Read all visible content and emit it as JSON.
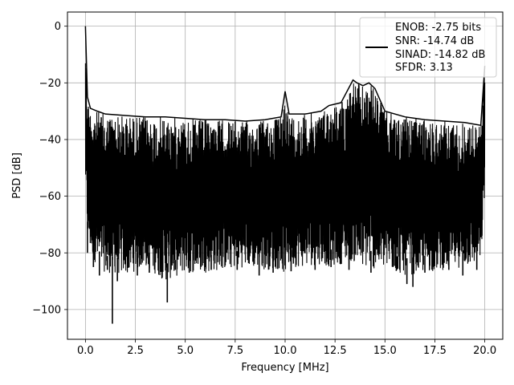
{
  "chart_data": {
    "type": "line",
    "title": "",
    "xlabel": "Frequency [MHz]",
    "ylabel": "PSD [dB]",
    "xlim": [
      -0.9,
      20.9
    ],
    "ylim": [
      -110.5,
      5
    ],
    "xticks": [
      0.0,
      2.5,
      5.0,
      7.5,
      10.0,
      12.5,
      15.0,
      17.5,
      20.0
    ],
    "xtick_labels": [
      "0.0",
      "2.5",
      "5.0",
      "7.5",
      "10.0",
      "12.5",
      "15.0",
      "17.5",
      "20.0"
    ],
    "yticks": [
      0,
      -20,
      -40,
      -60,
      -80,
      -100
    ],
    "ytick_labels": [
      "0",
      "−20",
      "−40",
      "−60",
      "−80",
      "−100"
    ],
    "grid": true,
    "legend_position": "top-right",
    "legend_lines": [
      "ENOB: -2.75 bits",
      "SNR: -14.74 dB",
      "SINAD: -14.82 dB",
      "SFDR: 3.13"
    ],
    "series_color": "#000000",
    "envelope": {
      "x": [
        0.0,
        0.1,
        0.25,
        0.6,
        1.0,
        2.0,
        3.0,
        4.0,
        5.0,
        6.0,
        7.0,
        8.0,
        9.0,
        9.8,
        10.0,
        10.2,
        11.0,
        11.8,
        12.2,
        12.8,
        13.4,
        13.6,
        13.9,
        14.2,
        14.5,
        15.0,
        16.0,
        17.0,
        18.0,
        19.0,
        19.8,
        20.0
      ],
      "upper": [
        0.0,
        -25.0,
        -29.0,
        -30.0,
        -31.0,
        -31.5,
        -32.0,
        -32.0,
        -32.5,
        -33.0,
        -33.0,
        -33.5,
        -33.0,
        -32.0,
        -23.0,
        -31.0,
        -31.0,
        -30.0,
        -28.0,
        -27.0,
        -19.0,
        -20.0,
        -21.0,
        -20.0,
        -22.0,
        -30.0,
        -32.0,
        -33.0,
        -33.5,
        -34.0,
        -35.0,
        -14.0
      ],
      "lower": [
        -57.0,
        -75.0,
        -80.0,
        -85.0,
        -87.0,
        -88.0,
        -85.0,
        -90.0,
        -87.0,
        -87.0,
        -86.0,
        -85.0,
        -86.0,
        -86.0,
        -88.0,
        -85.0,
        -85.0,
        -84.0,
        -85.0,
        -84.0,
        -83.0,
        -85.0,
        -86.0,
        -85.0,
        -86.0,
        -86.0,
        -88.0,
        -87.0,
        -86.0,
        -85.0,
        -84.0,
        -60.0
      ]
    },
    "dips": [
      {
        "x": 0.1,
        "y": -80.0
      },
      {
        "x": 0.4,
        "y": -85.0
      },
      {
        "x": 0.7,
        "y": -88.0
      },
      {
        "x": 1.1,
        "y": -86.0
      },
      {
        "x": 1.35,
        "y": -105.0
      },
      {
        "x": 1.6,
        "y": -90.0
      },
      {
        "x": 2.6,
        "y": -88.0
      },
      {
        "x": 3.2,
        "y": -87.0
      },
      {
        "x": 4.1,
        "y": -97.5
      },
      {
        "x": 4.5,
        "y": -86.0
      },
      {
        "x": 5.2,
        "y": -87.0
      },
      {
        "x": 6.3,
        "y": -86.0
      },
      {
        "x": 7.6,
        "y": -86.0
      },
      {
        "x": 8.7,
        "y": -88.0
      },
      {
        "x": 9.4,
        "y": -87.0
      },
      {
        "x": 10.3,
        "y": -86.5
      },
      {
        "x": 11.5,
        "y": -86.0
      },
      {
        "x": 12.3,
        "y": -85.0
      },
      {
        "x": 13.2,
        "y": -86.0
      },
      {
        "x": 14.3,
        "y": -87.0
      },
      {
        "x": 15.6,
        "y": -86.0
      },
      {
        "x": 16.1,
        "y": -91.0
      },
      {
        "x": 16.4,
        "y": -92.0
      },
      {
        "x": 17.0,
        "y": -87.0
      },
      {
        "x": 18.2,
        "y": -86.0
      },
      {
        "x": 18.9,
        "y": -88.0
      },
      {
        "x": 19.6,
        "y": -86.0
      }
    ]
  }
}
